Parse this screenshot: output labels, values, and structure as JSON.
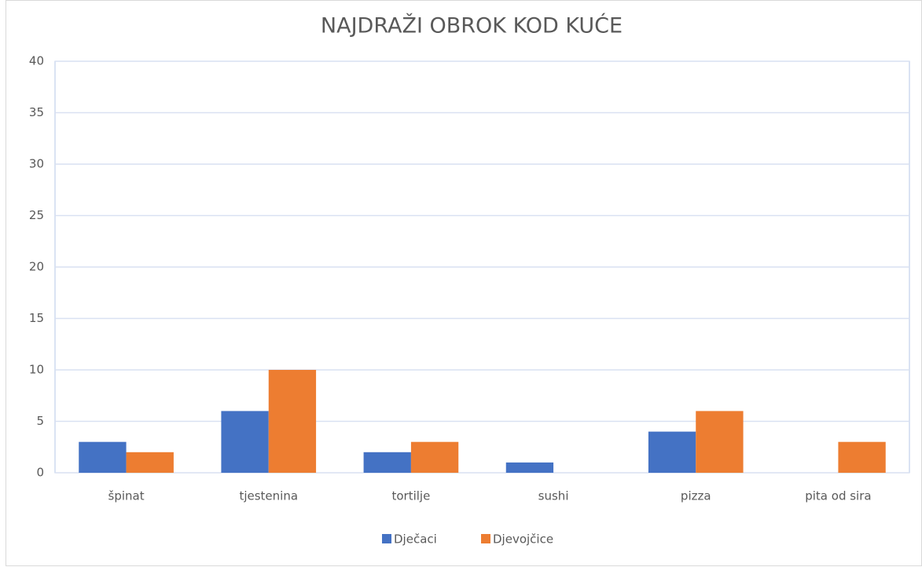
{
  "chart_data": {
    "type": "bar",
    "title": "NAJDRAŽI OBROK KOD KUĆE",
    "categories": [
      "špinat",
      "tjestenina",
      "tortilje",
      "sushi",
      "pizza",
      "pita od sira"
    ],
    "series": [
      {
        "name": "Dječaci",
        "color": "#4472c4",
        "values": [
          3,
          6,
          2,
          1,
          4,
          0
        ]
      },
      {
        "name": "Djevojčice",
        "color": "#ed7d31",
        "values": [
          2,
          10,
          3,
          0,
          6,
          3
        ]
      }
    ],
    "ylim": [
      0,
      40
    ],
    "yticks": [
      0,
      5,
      10,
      15,
      20,
      25,
      30,
      35,
      40
    ],
    "grid": true,
    "legend": "bottom"
  }
}
